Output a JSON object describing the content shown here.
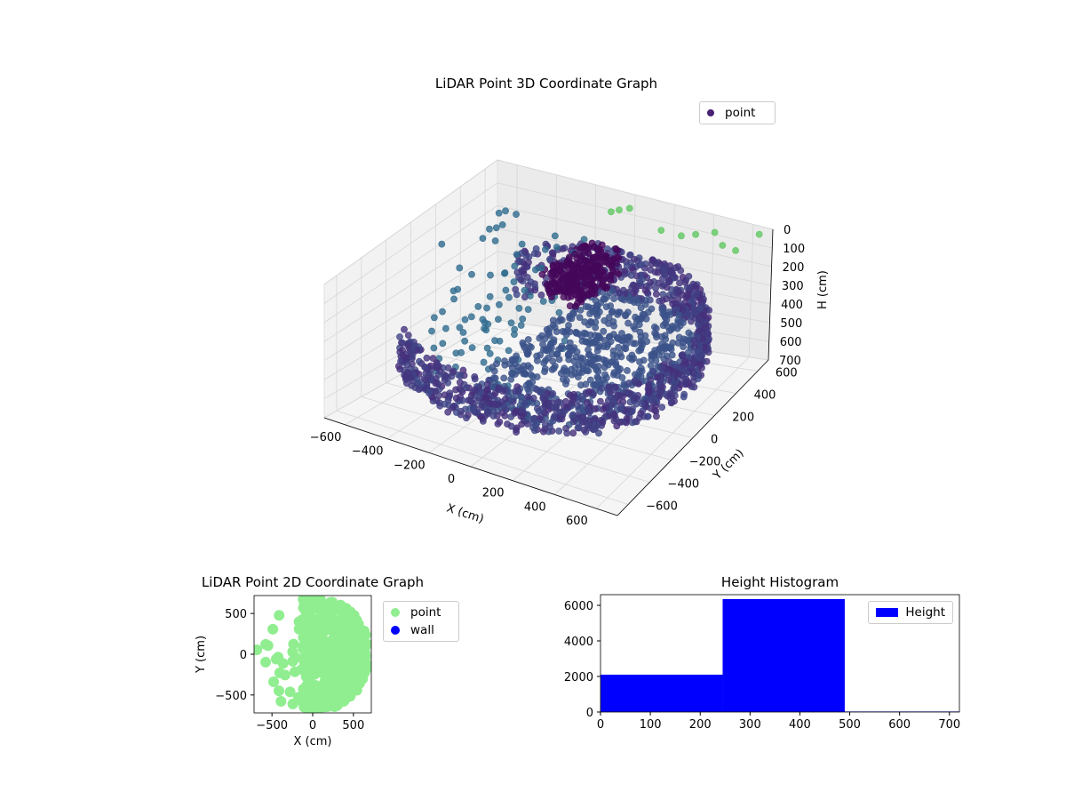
{
  "chart_data": [
    {
      "type": "scatter",
      "title": "LiDAR Point 3D Coordinate Graph",
      "xlabel": "X (cm)",
      "ylabel": "Y (cm)",
      "zlabel": "H (cm)",
      "xlim": [
        -700,
        700
      ],
      "ylim": [
        -700,
        700
      ],
      "zlim": [
        0,
        700
      ],
      "z_inverted": true,
      "x_ticks": [
        "−600",
        "−400",
        "−200",
        "0",
        "200",
        "400",
        "600"
      ],
      "y_ticks": [
        "−600",
        "−400",
        "−200",
        "0",
        "200",
        "400",
        "600"
      ],
      "z_ticks": [
        "0",
        "100",
        "200",
        "300",
        "400",
        "500",
        "600",
        "700"
      ],
      "grid": true,
      "colormap": "viridis",
      "legend": {
        "position": "top-right",
        "entries": [
          {
            "label": "point",
            "color": "#482173"
          }
        ]
      },
      "series": [
        {
          "name": "point",
          "description_values": []
        }
      ]
    },
    {
      "type": "scatter",
      "title": "LiDAR Point 2D Coordinate Graph",
      "xlabel": "X (cm)",
      "ylabel": "Y (cm)",
      "xlim": [
        -720,
        720
      ],
      "ylim": [
        -720,
        720
      ],
      "x_ticks": [
        "−500",
        "0",
        "500"
      ],
      "y_ticks": [
        "−500",
        "0",
        "500"
      ],
      "legend": {
        "position": "outside-right",
        "entries": [
          {
            "label": "point",
            "color": "#90ee90"
          },
          {
            "label": "wall",
            "color": "#0000ff"
          }
        ]
      },
      "series": [
        {
          "name": "point",
          "color": "#90ee90"
        },
        {
          "name": "wall",
          "color": "#0000ff"
        }
      ]
    },
    {
      "type": "bar",
      "title": "Height Histogram",
      "xlim": [
        0,
        720
      ],
      "ylim": [
        0,
        6600
      ],
      "x_ticks": [
        "0",
        "100",
        "200",
        "300",
        "400",
        "500",
        "600",
        "700"
      ],
      "y_ticks": [
        "0",
        "2000",
        "4000",
        "6000"
      ],
      "bins": [
        {
          "start": 0,
          "end": 245,
          "count": 2100
        },
        {
          "start": 245,
          "end": 490,
          "count": 6350
        },
        {
          "start": 490,
          "end": 720,
          "count": 30
        }
      ],
      "legend": {
        "position": "top-right",
        "entries": [
          {
            "label": "Height",
            "color": "#0000ff"
          }
        ]
      },
      "series": [
        {
          "name": "Height",
          "color": "#0000ff"
        }
      ]
    }
  ]
}
